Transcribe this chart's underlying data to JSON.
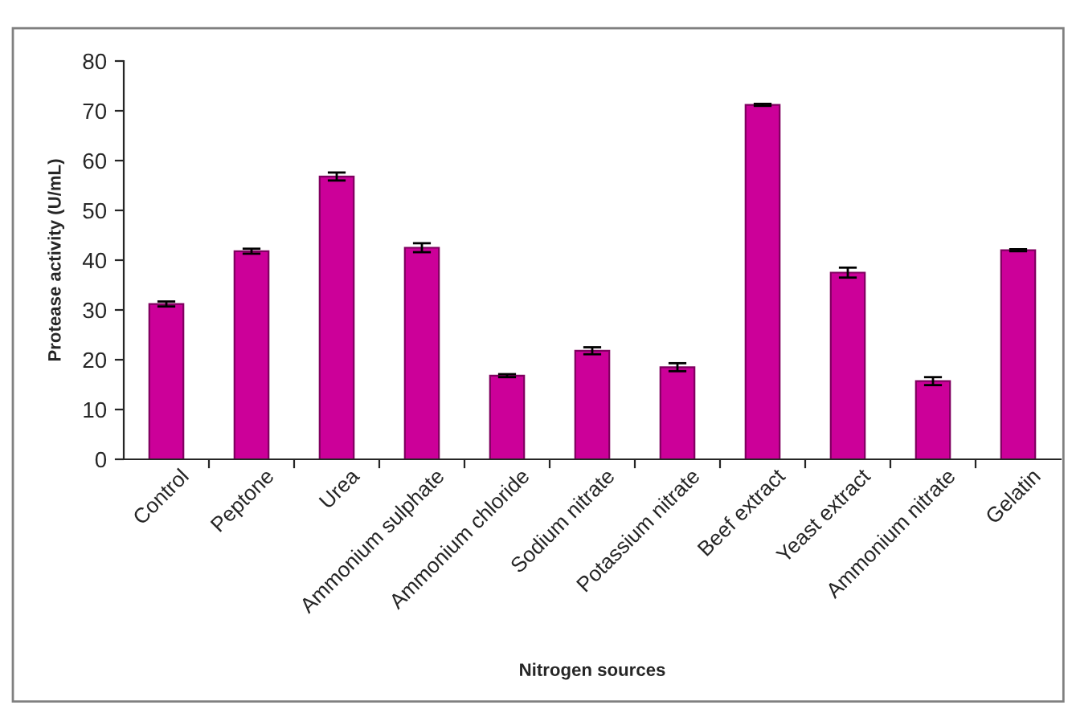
{
  "chart_data": {
    "type": "bar",
    "xlabel": "Nitrogen sources",
    "ylabel": "Protease activity (U/mL)",
    "categories": [
      "Control",
      "Peptone",
      "Urea",
      "Ammonium sulphate",
      "Ammonium chloride",
      "Sodium nitrate",
      "Potassium nitrate",
      "Beef extract",
      "Yeast extract",
      "Ammonium nitrate",
      "Gelatin"
    ],
    "values": [
      31.2,
      41.8,
      56.8,
      42.5,
      16.8,
      21.8,
      18.5,
      71.2,
      37.5,
      15.7,
      42.0
    ],
    "errors": [
      0.5,
      0.5,
      0.8,
      0.9,
      0.3,
      0.7,
      0.8,
      0.2,
      1.0,
      0.8,
      0.2
    ],
    "color": "#cc0099",
    "ylim": [
      0,
      80
    ],
    "yticks": [
      0,
      10,
      20,
      30,
      40,
      50,
      60,
      70,
      80
    ],
    "grid": false
  }
}
